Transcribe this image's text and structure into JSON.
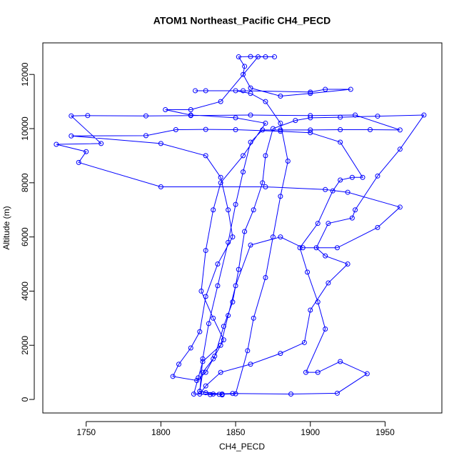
{
  "chart_data": {
    "type": "line",
    "title": "ATOM1 Northeast_Pacific CH4_PECD",
    "x_label": "CH4_PECD",
    "y_label": "Altitude (m)",
    "color": "#0000ff",
    "markers": true,
    "x": [
      1841,
      1830,
      1826,
      1828,
      1832,
      1838,
      1845,
      1850,
      1855,
      1860,
      1868,
      1880,
      1900,
      1920,
      1940,
      1960,
      1930,
      1900,
      1860,
      1820,
      1790,
      1751,
      1740,
      1760,
      1730,
      1750,
      1745,
      1800,
      1870,
      1910,
      1925,
      1960,
      1945,
      1918,
      1895,
      1880,
      1860,
      1850,
      1845,
      1840,
      1828,
      1825,
      1822,
      1835,
      1848,
      1887,
      1918,
      1938,
      1920,
      1905,
      1897,
      1910,
      1905,
      1898,
      1893,
      1905,
      1915,
      1920,
      1928,
      1935,
      1920,
      1900,
      1880,
      1850,
      1830,
      1810,
      1790,
      1740,
      1800,
      1830,
      1840,
      1845,
      1848,
      1838,
      1830,
      1826,
      1820,
      1812,
      1808,
      1824,
      1830,
      1836,
      1842,
      1848,
      1852,
      1856,
      1862,
      1868,
      1870,
      1875,
      1890,
      1900,
      1920,
      1945,
      1976,
      1960,
      1945,
      1930,
      1928,
      1912,
      1904,
      1910,
      1925,
      1912,
      1900,
      1896,
      1880,
      1860,
      1840,
      1830,
      1826,
      1833,
      1850,
      1858,
      1862,
      1870,
      1875,
      1880,
      1885,
      1880,
      1870,
      1860,
      1850,
      1830,
      1823,
      1855,
      1900,
      1910,
      1927,
      1900,
      1880,
      1860,
      1855,
      1856,
      1852,
      1860,
      1870,
      1876,
      1865,
      1840,
      1820,
      1803,
      1820,
      1850,
      1870,
      1855,
      1840,
      1835,
      1830,
      1827,
      1835,
      1842,
      1835,
      1828,
      1826,
      1839,
      1841
    ],
    "values": [
      200,
      250,
      300,
      1500,
      2800,
      4200,
      5800,
      7200,
      8400,
      9500,
      9950,
      9950,
      9950,
      9960,
      9960,
      9950,
      10500,
      10480,
      10500,
      10480,
      10470,
      10480,
      10470,
      9450,
      9420,
      9150,
      8750,
      7850,
      7850,
      7750,
      7650,
      7100,
      6350,
      5600,
      5600,
      6000,
      5700,
      4200,
      3100,
      2000,
      1400,
      800,
      200,
      200,
      220,
      200,
      230,
      950,
      1400,
      1000,
      1000,
      2600,
      3600,
      4700,
      5600,
      6500,
      7700,
      8100,
      8200,
      8200,
      9500,
      9850,
      9900,
      9960,
      9970,
      9960,
      9740,
      9730,
      9450,
      9000,
      8200,
      7000,
      6000,
      5000,
      3800,
      2500,
      1900,
      1300,
      850,
      700,
      1000,
      1600,
      2700,
      3600,
      4800,
      6200,
      7000,
      8000,
      9000,
      10000,
      10300,
      10400,
      10420,
      10460,
      10500,
      9240,
      8250,
      7000,
      6700,
      6500,
      5600,
      5300,
      5000,
      4300,
      3300,
      2100,
      1700,
      1300,
      1000,
      500,
      200,
      180,
      210,
      1800,
      3000,
      4500,
      6000,
      7500,
      8800,
      10200,
      11000,
      11300,
      11400,
      11400,
      11400,
      11400,
      11350,
      11450,
      11450,
      11300,
      11200,
      11500,
      12000,
      12300,
      12650,
      12660,
      12650,
      12650,
      12650,
      11000,
      10700,
      10700,
      10500,
      10400,
      10200,
      9000,
      8000,
      7000,
      5500,
      4000,
      3000,
      2200,
      1500,
      1000,
      300,
      190,
      170
    ],
    "xlim": [
      1721,
      1988
    ],
    "ylim": [
      -500,
      13166
    ],
    "xticks": [
      1750,
      1800,
      1850,
      1900,
      1950
    ],
    "yticks": [
      0,
      2000,
      4000,
      6000,
      8000,
      10000,
      12000
    ]
  }
}
